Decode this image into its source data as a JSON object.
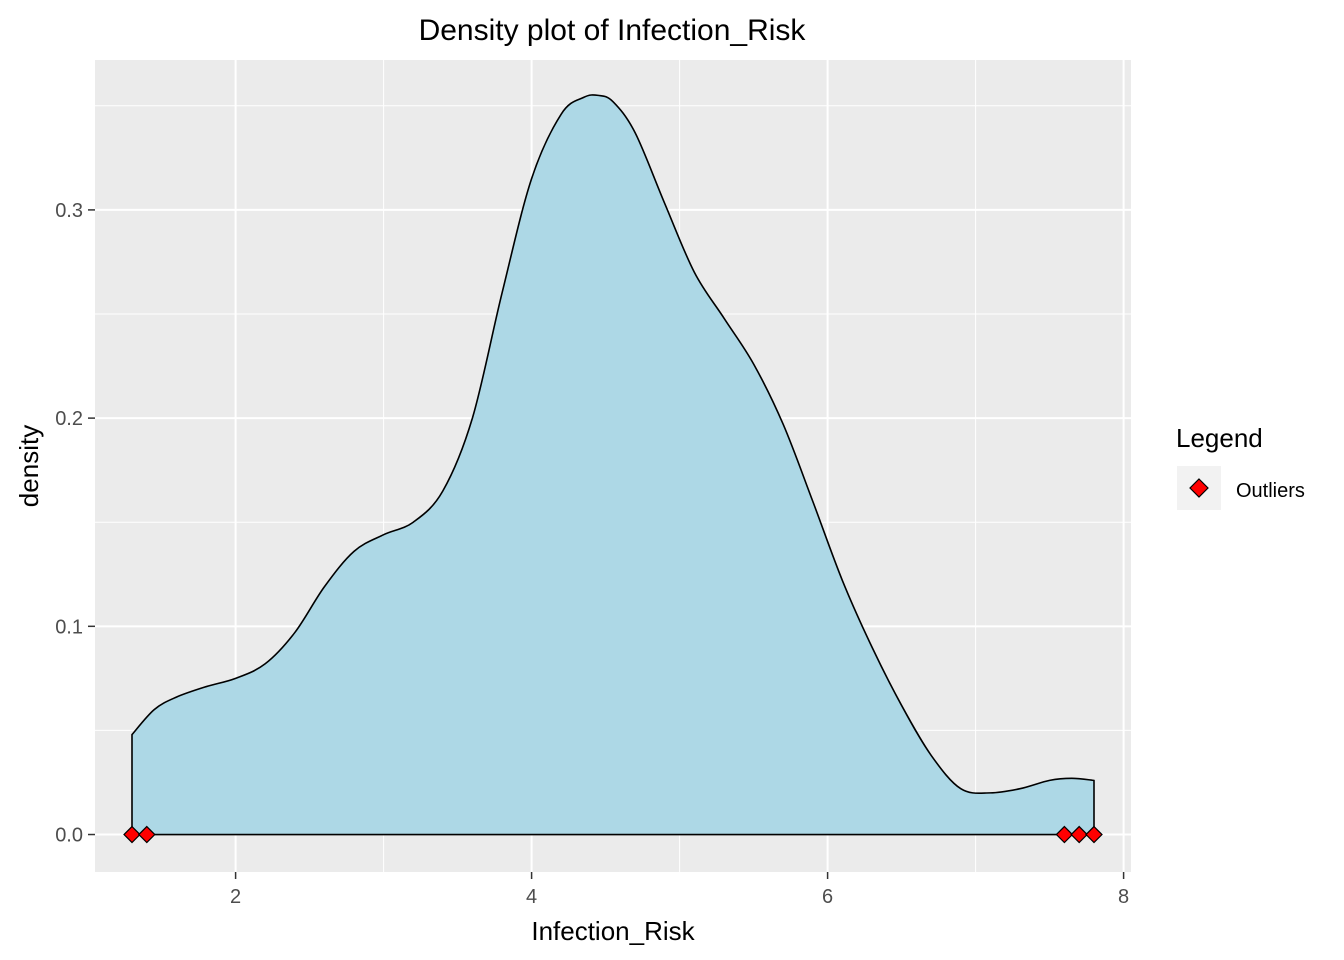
{
  "chart_data": {
    "type": "area",
    "title": "Density plot of Infection_Risk",
    "xlabel": "Infection_Risk",
    "ylabel": "density",
    "xlim": [
      1.05,
      8.05
    ],
    "ylim": [
      -0.018,
      0.372
    ],
    "x_ticks": [
      2,
      4,
      6,
      8
    ],
    "x_tick_labels": [
      "2",
      "4",
      "6",
      "8"
    ],
    "y_ticks": [
      0.0,
      0.1,
      0.2,
      0.3
    ],
    "y_tick_labels": [
      "0.0",
      "0.1",
      "0.2",
      "0.3"
    ],
    "grid": true,
    "fill_color": "#add8e6",
    "line_color": "#000000",
    "panel_background": "#ebebeb",
    "density": {
      "x": [
        1.3,
        1.45,
        1.6,
        1.8,
        2.0,
        2.2,
        2.4,
        2.6,
        2.8,
        3.0,
        3.2,
        3.4,
        3.6,
        3.8,
        4.0,
        4.2,
        4.35,
        4.45,
        4.55,
        4.7,
        4.9,
        5.1,
        5.3,
        5.5,
        5.7,
        5.9,
        6.1,
        6.3,
        6.5,
        6.7,
        6.9,
        7.1,
        7.3,
        7.5,
        7.65,
        7.8
      ],
      "y": [
        0.048,
        0.06,
        0.066,
        0.071,
        0.075,
        0.082,
        0.097,
        0.119,
        0.136,
        0.144,
        0.15,
        0.165,
        0.2,
        0.26,
        0.315,
        0.346,
        0.354,
        0.355,
        0.352,
        0.337,
        0.303,
        0.27,
        0.248,
        0.226,
        0.197,
        0.16,
        0.122,
        0.09,
        0.062,
        0.038,
        0.022,
        0.02,
        0.022,
        0.026,
        0.027,
        0.026
      ]
    },
    "outliers": {
      "x": [
        1.3,
        1.4,
        7.6,
        7.7,
        7.8
      ],
      "y": [
        0,
        0,
        0,
        0,
        0
      ],
      "color": "#ff0000",
      "shape": "diamond"
    },
    "legend": {
      "title": "Legend",
      "placement": "right",
      "entries": [
        {
          "label": "Outliers",
          "color": "#ff0000",
          "shape": "diamond"
        }
      ]
    }
  }
}
